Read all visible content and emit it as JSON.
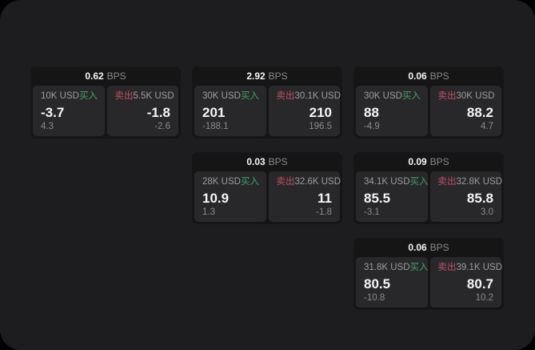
{
  "labels": {
    "buy": "买入",
    "sell": "卖出",
    "bps_unit": "BPS"
  },
  "colors": {
    "outer_background": "#000000",
    "panel_background": "#1d1d1f",
    "card_background": "#151516",
    "tile_background": "#28282a",
    "buy_accent": "#3fa368",
    "sell_accent": "#c25061"
  },
  "cards": [
    {
      "bps": "0.62",
      "grid": {
        "row": 1,
        "col": 1
      },
      "buy": {
        "size": "10K USD",
        "price": "-3.7",
        "change": "4.3"
      },
      "sell": {
        "size": "5.5K USD",
        "price": "-1.8",
        "change": "-2.6"
      }
    },
    {
      "bps": "2.92",
      "grid": {
        "row": 1,
        "col": 2
      },
      "buy": {
        "size": "30K USD",
        "price": "201",
        "change": "-188.1"
      },
      "sell": {
        "size": "30.1K USD",
        "price": "210",
        "change": "196.5"
      }
    },
    {
      "bps": "0.06",
      "grid": {
        "row": 1,
        "col": 3
      },
      "buy": {
        "size": "30K USD",
        "price": "88",
        "change": "-4.9"
      },
      "sell": {
        "size": "30K USD",
        "price": "88.2",
        "change": "4.7"
      }
    },
    {
      "bps": "0.03",
      "grid": {
        "row": 2,
        "col": 2
      },
      "buy": {
        "size": "28K USD",
        "price": "10.9",
        "change": "1.3"
      },
      "sell": {
        "size": "32.6K USD",
        "price": "11",
        "change": "-1.8"
      }
    },
    {
      "bps": "0.09",
      "grid": {
        "row": 2,
        "col": 3
      },
      "buy": {
        "size": "34.1K USD",
        "price": "85.5",
        "change": "-3.1"
      },
      "sell": {
        "size": "32.8K USD",
        "price": "85.8",
        "change": "3.0"
      }
    },
    {
      "bps": "0.06",
      "grid": {
        "row": 3,
        "col": 3
      },
      "buy": {
        "size": "31.8K USD",
        "price": "80.5",
        "change": "-10.8"
      },
      "sell": {
        "size": "39.1K USD",
        "price": "80.7",
        "change": "10.2"
      }
    }
  ]
}
